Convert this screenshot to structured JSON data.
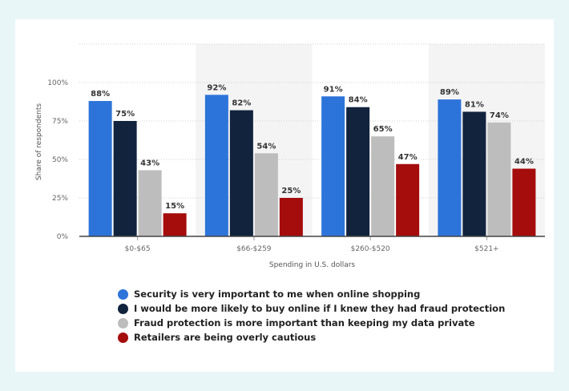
{
  "chart_data": {
    "type": "bar",
    "categories": [
      "$0-$65",
      "$66-$259",
      "$260-$520",
      "$521+"
    ],
    "series": [
      {
        "name": "Security is very important to me when online shopping",
        "color": "#2d74da",
        "values": [
          88,
          92,
          91,
          89
        ]
      },
      {
        "name": "I would be more likely to buy online if I knew they had fraud protection",
        "color": "#11233d",
        "values": [
          75,
          82,
          84,
          81
        ]
      },
      {
        "name": "Fraud protection is more important than keeping my data private",
        "color": "#bdbdbd",
        "values": [
          43,
          54,
          65,
          74
        ]
      },
      {
        "name": "Retailers are being overly cautious",
        "color": "#a50c0c",
        "values": [
          15,
          25,
          47,
          44
        ]
      }
    ],
    "value_suffix": "%",
    "xlabel": "Spending in U.S. dollars",
    "ylabel": "Share of respondents",
    "yticks": [
      "0%",
      "25%",
      "50%",
      "75%",
      "100%"
    ],
    "ylim": [
      0,
      100
    ],
    "grid": true,
    "legend_position": "bottom"
  }
}
